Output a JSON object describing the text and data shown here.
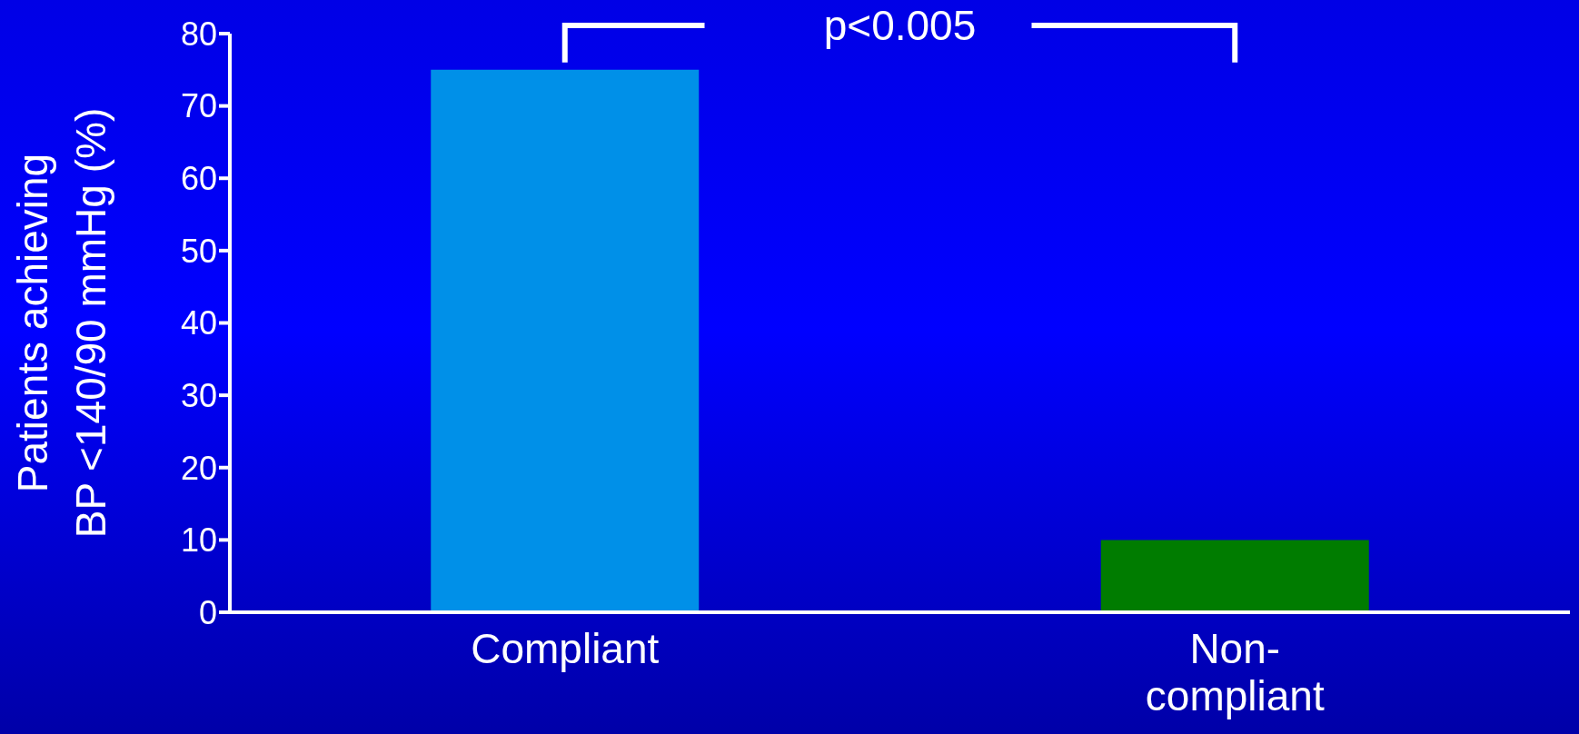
{
  "chart_data": {
    "type": "bar",
    "ylabel": "Patients achieving BP <140/90 mmHg (%)",
    "categories": [
      "Compliant",
      "Non-compliant"
    ],
    "values": [
      75,
      10
    ],
    "colors": [
      "#0090e8",
      "#007c00"
    ],
    "ylim": [
      0,
      80
    ],
    "yticks": [
      0,
      10,
      20,
      30,
      40,
      50,
      60,
      70,
      80
    ],
    "annotations": [
      "p<0.005"
    ]
  }
}
